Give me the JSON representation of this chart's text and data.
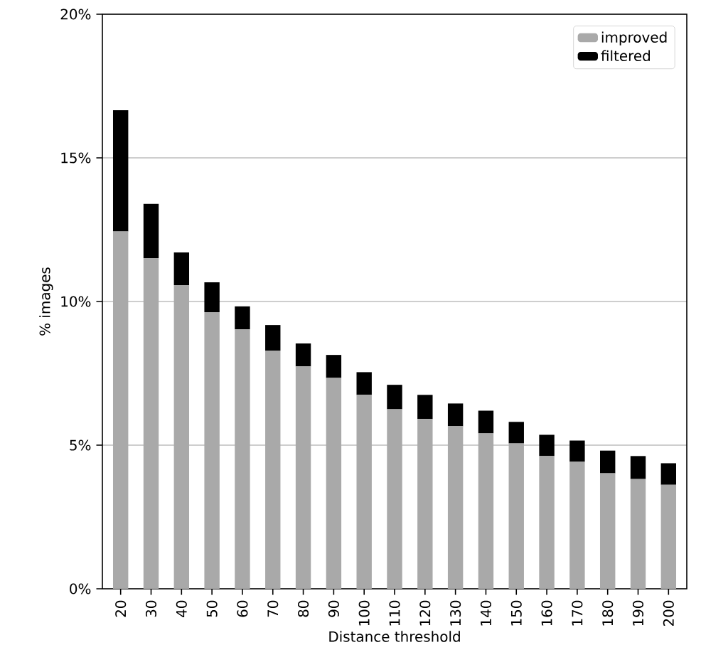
{
  "chart_data": {
    "type": "bar",
    "stacked": true,
    "xlabel": "Distance threshold",
    "ylabel": "% images",
    "categories": [
      "20",
      "30",
      "40",
      "50",
      "60",
      "70",
      "80",
      "90",
      "100",
      "110",
      "120",
      "130",
      "140",
      "150",
      "160",
      "170",
      "180",
      "190",
      "200"
    ],
    "series": [
      {
        "name": "improved",
        "color": "#a9a9a9",
        "values": [
          12.44,
          11.51,
          10.57,
          9.63,
          9.03,
          8.29,
          7.74,
          7.34,
          6.75,
          6.25,
          5.91,
          5.66,
          5.41,
          5.06,
          4.62,
          4.42,
          4.02,
          3.82,
          3.62
        ]
      },
      {
        "name": "filtered",
        "color": "#000000",
        "values": [
          4.22,
          1.89,
          1.14,
          1.04,
          0.8,
          0.89,
          0.8,
          0.8,
          0.79,
          0.85,
          0.84,
          0.79,
          0.79,
          0.75,
          0.74,
          0.74,
          0.79,
          0.8,
          0.75
        ]
      }
    ],
    "ylim": [
      0,
      20
    ],
    "yticks": [
      {
        "value": 0,
        "label": "0%"
      },
      {
        "value": 5,
        "label": "5%"
      },
      {
        "value": 10,
        "label": "10%"
      },
      {
        "value": 15,
        "label": "15%"
      },
      {
        "value": 20,
        "label": "20%"
      }
    ],
    "grid": "y",
    "legend": "top right"
  }
}
